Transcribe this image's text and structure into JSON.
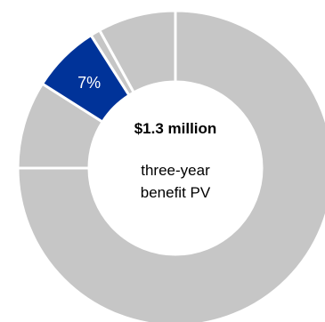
{
  "chart_data": {
    "type": "pie",
    "variant": "donut",
    "center_title": "$1.3 million",
    "center_subtitle_lines": [
      "three-year",
      "benefit PV"
    ],
    "slices": [
      {
        "value": 75,
        "color": "#c6c6c6",
        "label": ""
      },
      {
        "value": 9,
        "color": "#c6c6c6",
        "label": ""
      },
      {
        "value": 7,
        "color": "#003399",
        "label": "7%"
      },
      {
        "value": 1,
        "color": "#c6c6c6",
        "label": ""
      },
      {
        "value": 8,
        "color": "#c6c6c6",
        "label": ""
      }
    ],
    "start_angle_deg": 0,
    "direction": "clockwise",
    "separator_color": "#ffffff"
  }
}
